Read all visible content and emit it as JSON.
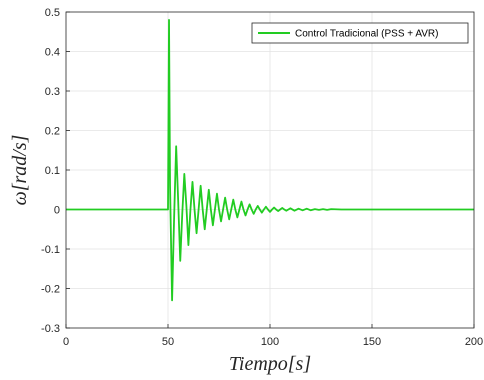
{
  "chart_data": {
    "type": "line",
    "xlabel": "Tiempo[s]",
    "ylabel": "ω[rad/s]",
    "xlim": [
      0,
      200
    ],
    "ylim": [
      -0.3,
      0.5
    ],
    "xticks": [
      0,
      50,
      100,
      150,
      200
    ],
    "xtick_labels": [
      "0",
      "50",
      "100",
      "150",
      "200"
    ],
    "yticks": [
      -0.3,
      -0.2,
      -0.1,
      0,
      0.1,
      0.2,
      0.3,
      0.4,
      0.5
    ],
    "ytick_labels": [
      "-0.3",
      "-0.2",
      "-0.1",
      "0",
      "0.1",
      "0.2",
      "0.3",
      "0.4",
      "0.5"
    ],
    "grid": true,
    "legend_position": "top-right",
    "series": [
      {
        "name": "Control Tradicional (PSS + AVR)",
        "color": "#22cc22",
        "x": [
          0,
          50,
          50.5,
          51,
          52,
          53,
          54,
          55,
          56,
          57,
          58,
          59,
          60,
          61,
          62,
          63,
          64,
          65,
          66,
          67,
          68,
          69,
          70,
          71,
          72,
          73,
          74,
          75,
          76,
          77,
          78,
          79,
          80,
          81,
          82,
          83,
          84,
          85,
          86,
          87,
          88,
          89,
          90,
          91,
          92,
          93,
          94,
          95,
          96,
          97,
          98,
          99,
          100,
          101,
          102,
          103,
          104,
          105,
          106,
          107,
          108,
          109,
          110,
          112,
          114,
          116,
          118,
          120,
          122,
          124,
          126,
          128,
          130,
          135,
          140,
          145,
          150,
          200
        ],
        "y": [
          0,
          0,
          0.48,
          0.06,
          -0.23,
          -0.02,
          0.16,
          0.02,
          -0.13,
          -0.01,
          0.09,
          0.01,
          -0.09,
          0.0,
          0.07,
          0.0,
          -0.06,
          0.0,
          0.06,
          0.0,
          -0.05,
          0.0,
          0.05,
          0.0,
          -0.04,
          0.0,
          0.04,
          0.0,
          -0.03,
          0.0,
          0.03,
          0.0,
          -0.025,
          0.0,
          0.025,
          0.0,
          -0.02,
          0.0,
          0.02,
          0.0,
          -0.015,
          0.0,
          0.013,
          0.0,
          -0.011,
          0.0,
          0.009,
          0.0,
          -0.008,
          0.0,
          0.007,
          0.0,
          -0.006,
          0.0,
          0.005,
          0.0,
          -0.004,
          0.0,
          0.004,
          0.0,
          -0.003,
          0.0,
          0.003,
          -0.003,
          0.002,
          -0.002,
          0.002,
          -0.002,
          0.001,
          -0.001,
          0.001,
          -0.001,
          0.001,
          0,
          0,
          0,
          0,
          0
        ]
      }
    ]
  }
}
